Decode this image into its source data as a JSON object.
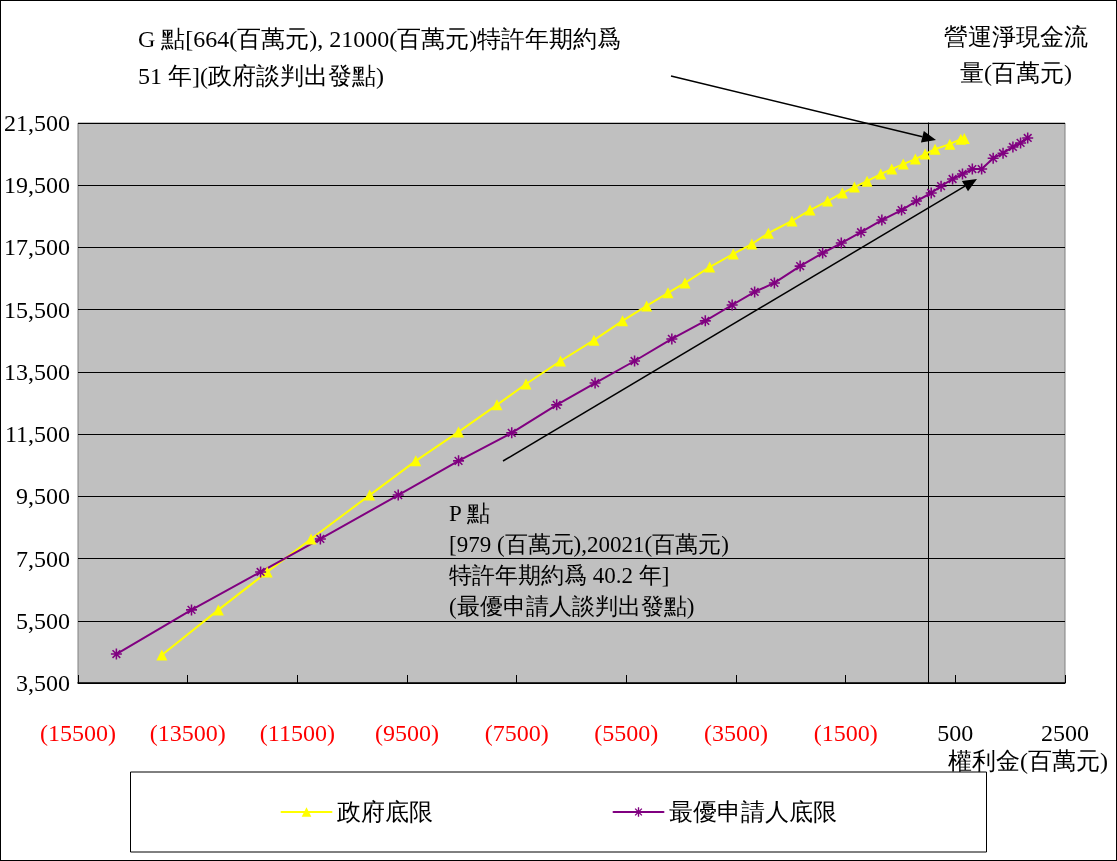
{
  "chart_data": {
    "type": "line",
    "xlabel": "權利金(百萬元)",
    "ylabel": "營運淨現金流量(百萬元)",
    "annotations": [
      "G 點[664(百萬元), 21000(百萬元)特許年期約爲 51 年](政府談判出發點)",
      "P 點\n[979 (百萬元),20021(百萬元)\n特許年期約爲 40.2 年]\n(最優申請人談判出發點)"
    ],
    "series": [
      {
        "name": "政府底限",
        "color": "#ffff00",
        "marker": "triangle",
        "x": [
          -13970,
          -12940,
          -12050,
          -11250,
          -10180,
          -9340,
          -8560,
          -7860,
          -7330,
          -6700,
          -6090,
          -5570,
          -5130,
          -4740,
          -4430,
          -3980,
          -3550,
          -3210,
          -2910,
          -2480,
          -2150,
          -1830,
          -1560,
          -1340,
          -1110,
          -860,
          -660,
          -450,
          -230,
          -50,
          130,
          400,
          600,
          664
        ],
        "values": [
          4400,
          5850,
          7070,
          8130,
          9540,
          10640,
          11570,
          12440,
          13110,
          13850,
          14520,
          15140,
          15620,
          16040,
          16360,
          16870,
          17290,
          17610,
          17960,
          18350,
          18700,
          18990,
          19250,
          19440,
          19630,
          19860,
          20020,
          20180,
          20340,
          20500,
          20660,
          20820,
          20980,
          21000
        ]
      },
      {
        "name": "最優申請人底限",
        "color": "#800080",
        "marker": "cross",
        "x": [
          -14800,
          -13430,
          -12170,
          -11080,
          -9660,
          -8560,
          -7590,
          -6770,
          -6070,
          -5350,
          -4670,
          -4060,
          -3570,
          -3160,
          -2800,
          -2330,
          -1920,
          -1580,
          -1220,
          -840,
          -480,
          -210,
          60,
          240,
          450,
          630,
          810,
          980,
          1190,
          1370,
          1550,
          1690,
          1820
        ],
        "values": [
          4430,
          5850,
          7070,
          8130,
          9540,
          10640,
          11540,
          12440,
          13140,
          13850,
          14560,
          15140,
          15650,
          16070,
          16360,
          16900,
          17320,
          17640,
          17990,
          18380,
          18700,
          18990,
          19250,
          19470,
          19700,
          19860,
          20020,
          20020,
          20370,
          20530,
          20730,
          20860,
          21020
        ]
      }
    ],
    "xlim": [
      -15500,
      2500
    ],
    "xticks": [
      {
        "value": -15500,
        "label": "(15500)"
      },
      {
        "value": -13500,
        "label": "(13500)"
      },
      {
        "value": -11500,
        "label": "(11500)"
      },
      {
        "value": -9500,
        "label": "(9500)"
      },
      {
        "value": -7500,
        "label": "(7500)"
      },
      {
        "value": -5500,
        "label": "(5500)"
      },
      {
        "value": -3500,
        "label": "(3500)"
      },
      {
        "value": -1500,
        "label": "(1500)"
      },
      500,
      2500
    ],
    "ylim": [
      3500,
      21500
    ],
    "yticks": [
      {
        "value": 3500,
        "label": "3,500"
      },
      {
        "value": 5500,
        "label": "5,500"
      },
      {
        "value": 7500,
        "label": "7,500"
      },
      {
        "value": 9500,
        "label": "9,500"
      },
      {
        "value": 11500,
        "label": "11,500"
      },
      {
        "value": 13500,
        "label": "13,500"
      },
      {
        "value": 15500,
        "label": "15,500"
      },
      {
        "value": 17500,
        "label": "17,500"
      },
      {
        "value": 19500,
        "label": "19,500"
      },
      {
        "value": 21500,
        "label": "21,500"
      }
    ],
    "grid": "y",
    "legend": "bottom"
  }
}
